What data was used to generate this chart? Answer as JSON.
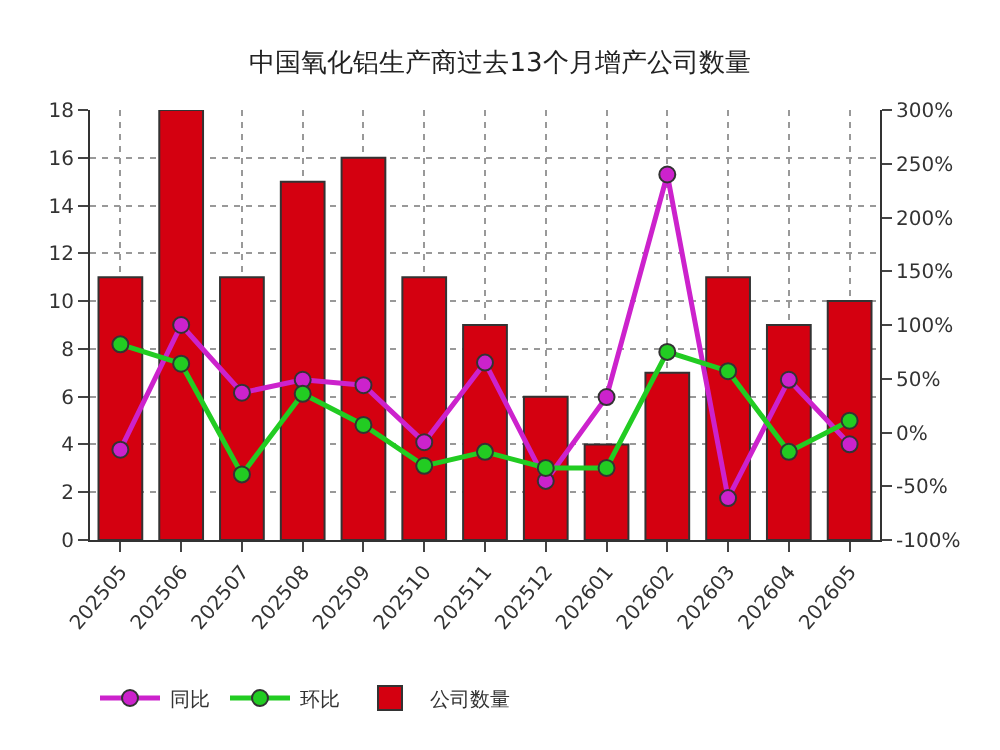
{
  "chart_data": {
    "type": "bar",
    "title": "中国氧化铝生产商过去13个月增产公司数量",
    "categories": [
      "202505",
      "202506",
      "202507",
      "202508",
      "202509",
      "202510",
      "202511",
      "202512",
      "202601",
      "202602",
      "202603",
      "202604",
      "202605"
    ],
    "series": [
      {
        "name": "同比",
        "type": "line",
        "axis": "y2",
        "color": "#cc22cc",
        "values": [
          -16,
          100,
          37,
          49,
          44,
          -9,
          65,
          -45,
          33,
          240,
          -61,
          49,
          -11
        ]
      },
      {
        "name": "环比",
        "type": "line",
        "axis": "y2",
        "color": "#22cc22",
        "values": [
          82,
          64,
          -39,
          36,
          7,
          -31,
          -18,
          -33,
          -33,
          75,
          57,
          -18,
          11
        ]
      },
      {
        "name": "公司数量",
        "color": "#d40010",
        "values": [
          11,
          18,
          11,
          15,
          16,
          11,
          9,
          6,
          4,
          7,
          11,
          9,
          10
        ]
      }
    ],
    "ylim": [
      0,
      18
    ],
    "yticks": [
      0,
      2,
      4,
      6,
      8,
      10,
      12,
      14,
      16,
      18
    ],
    "y2lim": [
      -100,
      300
    ],
    "y2ticks": [
      {
        "value": -100,
        "label": "-100%"
      },
      {
        "value": -50,
        "label": "-50%"
      },
      {
        "value": 0,
        "label": "0%"
      },
      {
        "value": 50,
        "label": "50%"
      },
      {
        "value": 100,
        "label": "100%"
      },
      {
        "value": 150,
        "label": "150%"
      },
      {
        "value": 200,
        "label": "200%"
      },
      {
        "value": 250,
        "label": "250%"
      },
      {
        "value": 300,
        "label": "300%"
      }
    ],
    "grid": true,
    "legend": "bottom left",
    "marker": "circle",
    "line_style": "solid"
  }
}
